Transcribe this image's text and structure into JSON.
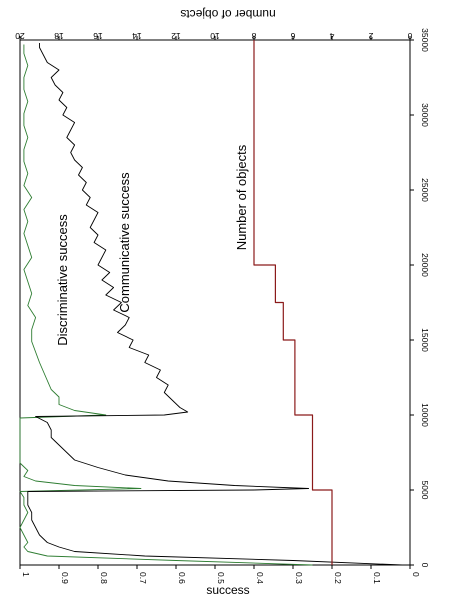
{
  "chart_data": {
    "type": "line",
    "orientation": "rotated-90-clockwise",
    "x_axis": {
      "ticks": [
        "0",
        "5000",
        "10000",
        "15000",
        "20000",
        "25000",
        "30000",
        "35000"
      ],
      "range": [
        0,
        35000
      ]
    },
    "y_left": {
      "label": "success",
      "ticks": [
        "0",
        "0.1",
        "0.2",
        "0.3",
        "0.4",
        "0.5",
        "0.6",
        "0.7",
        "0.8",
        "0.9",
        "1"
      ],
      "range": [
        0,
        1
      ]
    },
    "y_right": {
      "label": "number of objects",
      "ticks": [
        "0",
        "2",
        "4",
        "6",
        "8",
        "10",
        "12",
        "14",
        "16",
        "18",
        "20"
      ],
      "range": [
        0,
        20
      ]
    },
    "annotations": [
      {
        "text": "Discriminative success",
        "x": 19000,
        "y": 0.88
      },
      {
        "text": "Communicative success",
        "x": 21500,
        "y": 0.72
      },
      {
        "text": "Number of objects",
        "x": 24500,
        "y": 0.42
      }
    ],
    "series": [
      {
        "name": "Discriminative success",
        "color": "#2e7d32",
        "axis": "left",
        "x": [
          0,
          300,
          600,
          900,
          1200,
          1500,
          2000,
          2500,
          3000,
          3500,
          4000,
          4500,
          4900,
          5100,
          5300,
          5600,
          5900,
          6300,
          6800,
          7500,
          8500,
          9500,
          9800,
          10000,
          10300,
          10700,
          11200,
          11700,
          12300,
          12900,
          13500,
          14200,
          14900,
          15700,
          16500,
          17300,
          18100,
          18900,
          19700,
          20500,
          21300,
          22100,
          22900,
          23700,
          24500,
          25300,
          26100,
          26900,
          27700,
          28500,
          29300,
          30100,
          30900,
          31700,
          32500,
          33300,
          34100,
          34700
        ],
        "y": [
          0.25,
          0.6,
          0.93,
          0.98,
          0.99,
          0.98,
          0.99,
          1.0,
          0.99,
          0.98,
          0.99,
          0.99,
          1.0,
          0.69,
          0.86,
          0.96,
          0.99,
          0.98,
          1.0,
          1.0,
          1.0,
          1.0,
          1.0,
          0.78,
          0.86,
          0.9,
          0.9,
          0.92,
          0.93,
          0.94,
          0.95,
          0.96,
          0.97,
          0.97,
          0.96,
          0.98,
          0.97,
          0.98,
          0.99,
          0.97,
          0.98,
          0.99,
          0.98,
          0.99,
          0.97,
          0.99,
          0.98,
          0.99,
          0.99,
          0.98,
          0.99,
          0.99,
          0.98,
          0.99,
          0.99,
          0.98,
          0.99,
          0.99
        ]
      },
      {
        "name": "Communicative success",
        "color": "#000000",
        "axis": "left",
        "x": [
          0,
          300,
          600,
          900,
          1200,
          1500,
          2000,
          2500,
          3000,
          3500,
          4000,
          4500,
          4900,
          5000,
          5100,
          5300,
          5600,
          6000,
          6500,
          7000,
          7500,
          8000,
          8500,
          9000,
          9500,
          9900,
          10000,
          10200,
          10500,
          11000,
          11500,
          12000,
          12500,
          13000,
          13500,
          14000,
          14500,
          15000,
          15500,
          16000,
          16500,
          17000,
          17500,
          18000,
          18500,
          19000,
          19500,
          20000,
          20500,
          21000,
          21500,
          22000,
          22500,
          23000,
          23500,
          24000,
          24500,
          25000,
          25500,
          26000,
          26500,
          27000,
          27500,
          28000,
          28500,
          29000,
          29500,
          30000,
          30500,
          31000,
          31500,
          32000,
          32500,
          33000,
          33500,
          34000,
          34500,
          34800
        ],
        "y": [
          0.02,
          0.3,
          0.68,
          0.86,
          0.9,
          0.93,
          0.95,
          0.96,
          0.97,
          0.97,
          0.98,
          0.98,
          0.98,
          0.4,
          0.26,
          0.45,
          0.62,
          0.73,
          0.8,
          0.86,
          0.88,
          0.9,
          0.92,
          0.92,
          0.93,
          0.96,
          0.63,
          0.57,
          0.59,
          0.61,
          0.63,
          0.62,
          0.65,
          0.64,
          0.68,
          0.67,
          0.72,
          0.71,
          0.75,
          0.73,
          0.72,
          0.76,
          0.74,
          0.78,
          0.76,
          0.79,
          0.77,
          0.8,
          0.79,
          0.78,
          0.81,
          0.8,
          0.82,
          0.81,
          0.8,
          0.83,
          0.82,
          0.84,
          0.83,
          0.85,
          0.84,
          0.86,
          0.87,
          0.86,
          0.88,
          0.87,
          0.86,
          0.89,
          0.88,
          0.9,
          0.89,
          0.91,
          0.92,
          0.9,
          0.93,
          0.94,
          0.95,
          0.95
        ]
      },
      {
        "name": "Number of objects",
        "color": "#8b1a1a",
        "axis": "right",
        "x": [
          0,
          5000,
          5000,
          10000,
          10000,
          15000,
          15000,
          17500,
          17500,
          20000,
          20000,
          35000
        ],
        "y": [
          4,
          4,
          5,
          5,
          5.9,
          5.9,
          6.5,
          6.5,
          6.9,
          6.9,
          8,
          8
        ]
      }
    ]
  }
}
